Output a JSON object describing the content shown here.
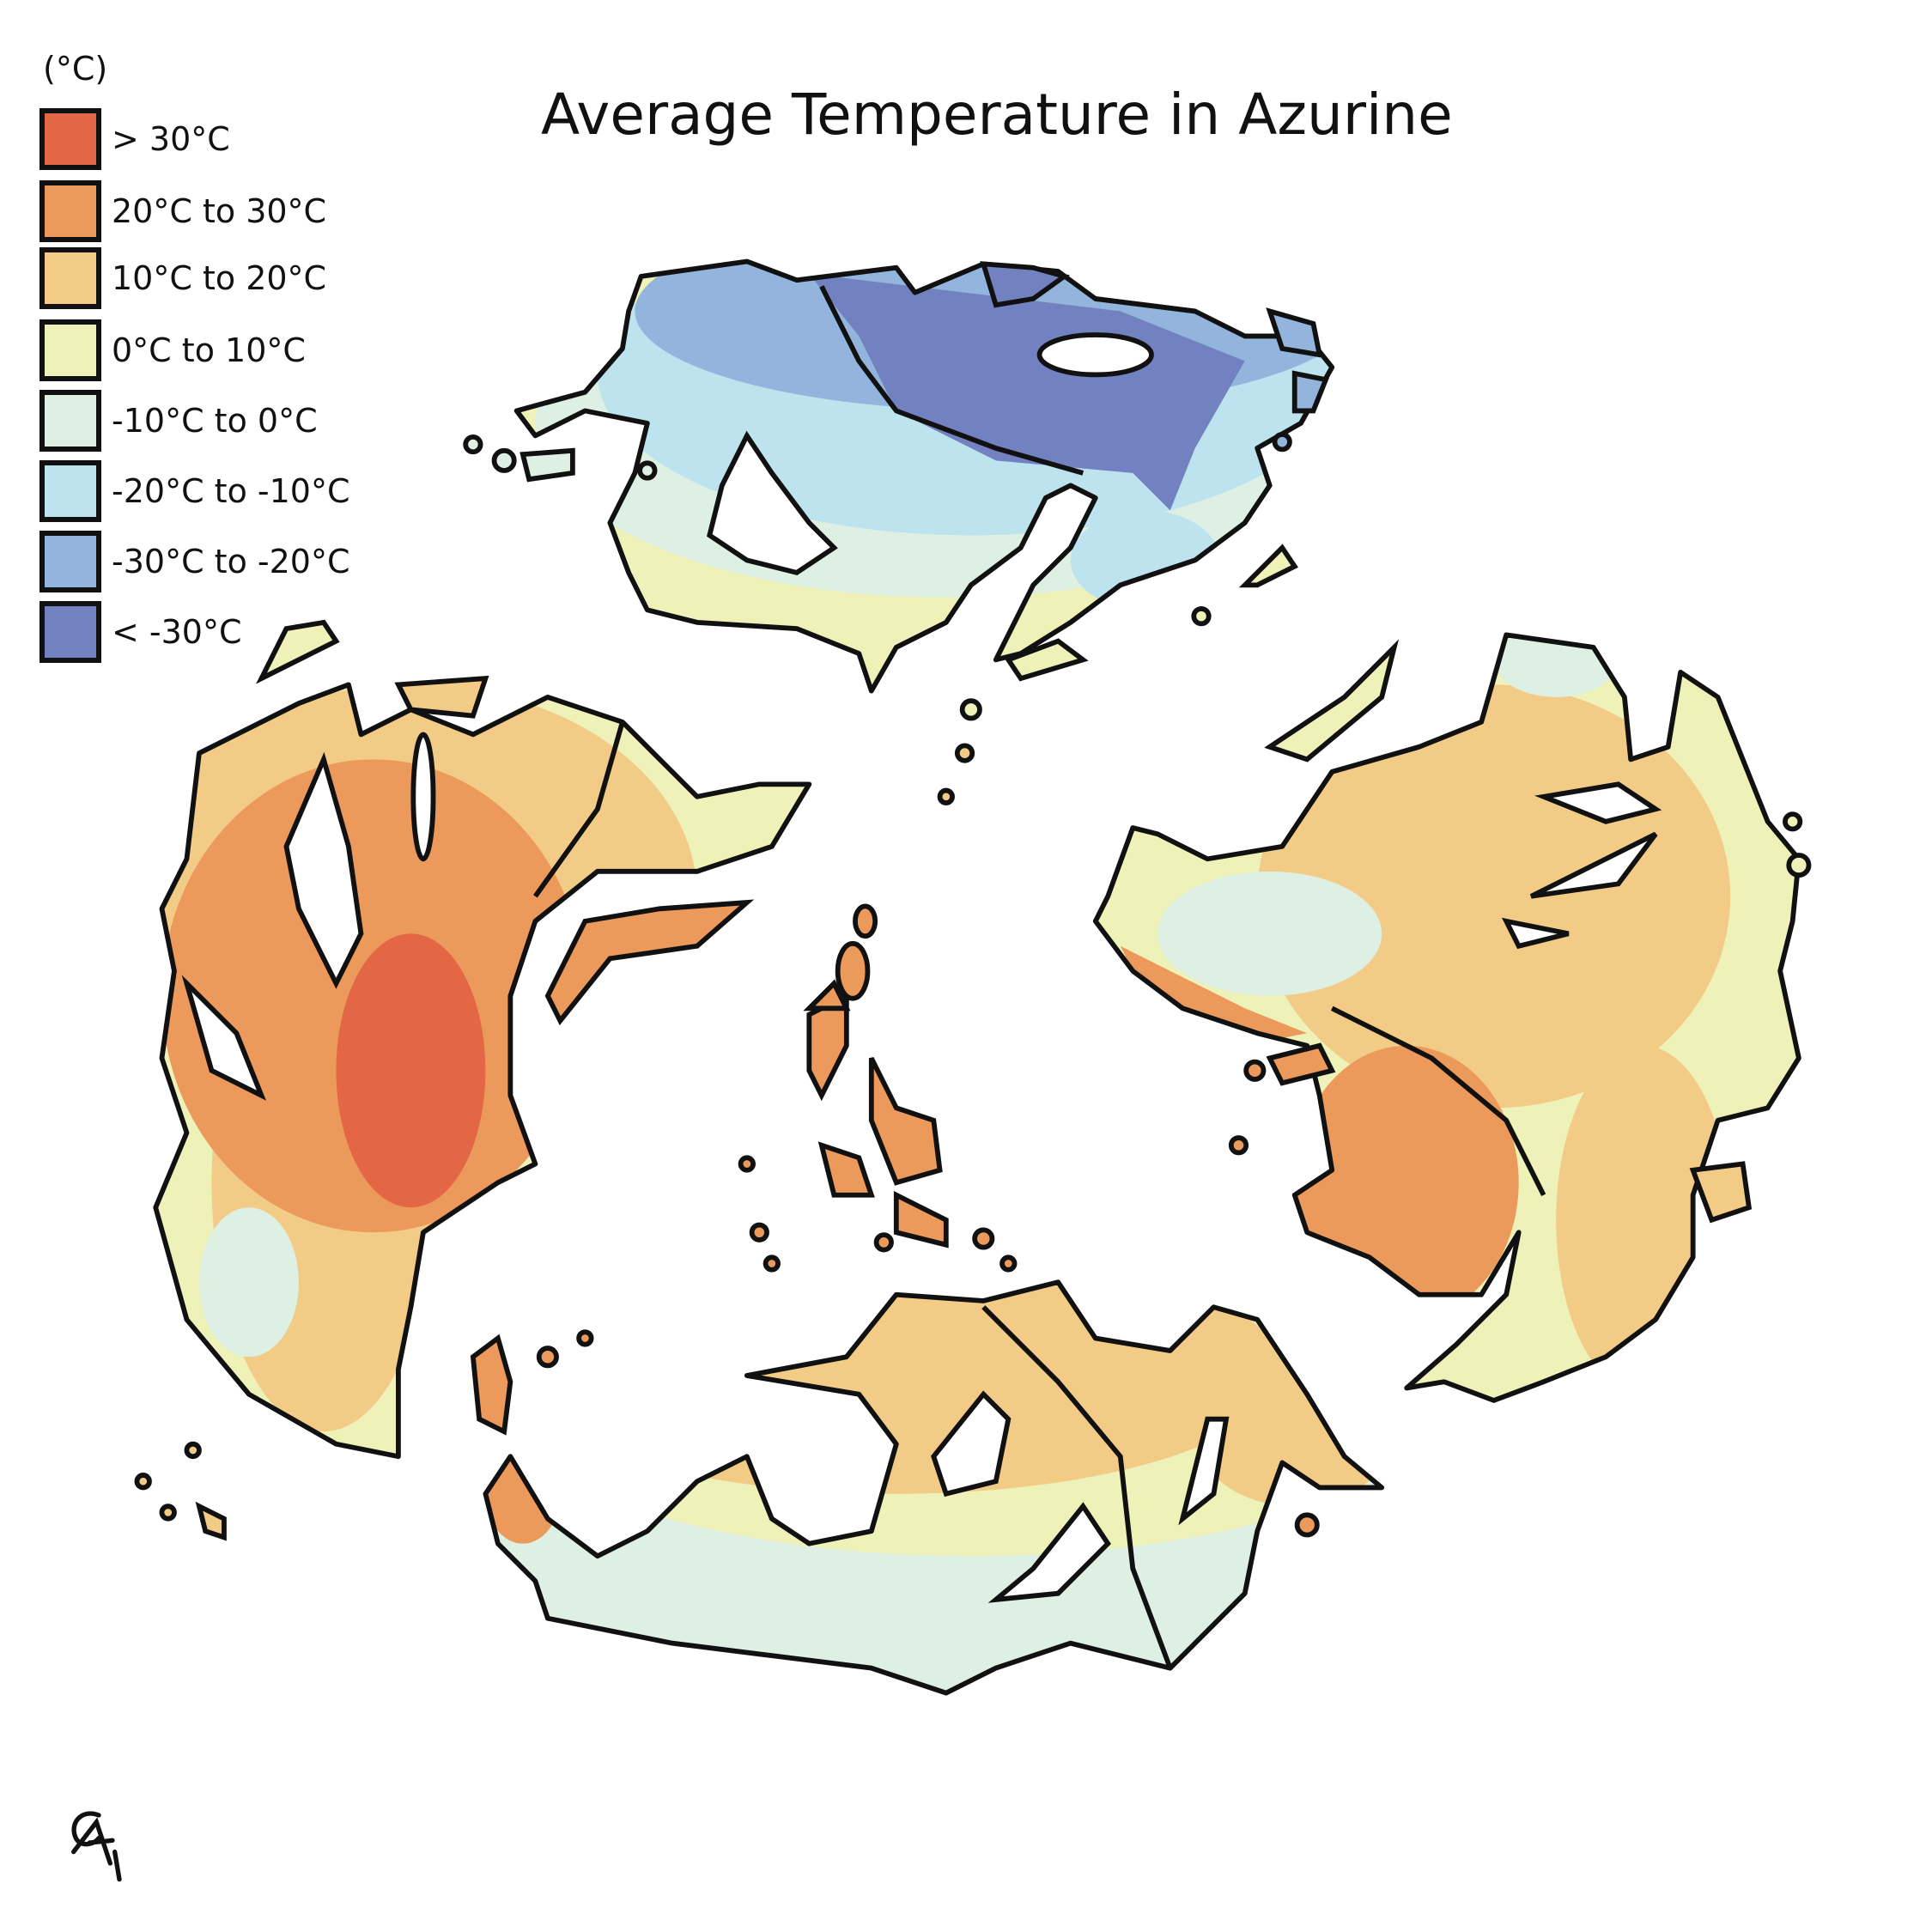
{
  "title": "Average Temperature in Azurine",
  "legend": {
    "unit": "(°C)",
    "items": [
      {
        "label": "> 30°C",
        "color": "#e36744"
      },
      {
        "label": "20°C to 30°C",
        "color": "#eb9a5c"
      },
      {
        "label": "10°C to 20°C",
        "color": "#f2cc86"
      },
      {
        "label": "0°C to 10°C",
        "color": "#eff2b8"
      },
      {
        "label": "-10°C to 0°C",
        "color": "#deefe3"
      },
      {
        "label": "-20°C to -10°C",
        "color": "#bde4ee"
      },
      {
        "label": "-30°C to -20°C",
        "color": "#93b5dd"
      },
      {
        "label": "< -30°C",
        "color": "#7282c0"
      }
    ]
  },
  "signature": "CM"
}
